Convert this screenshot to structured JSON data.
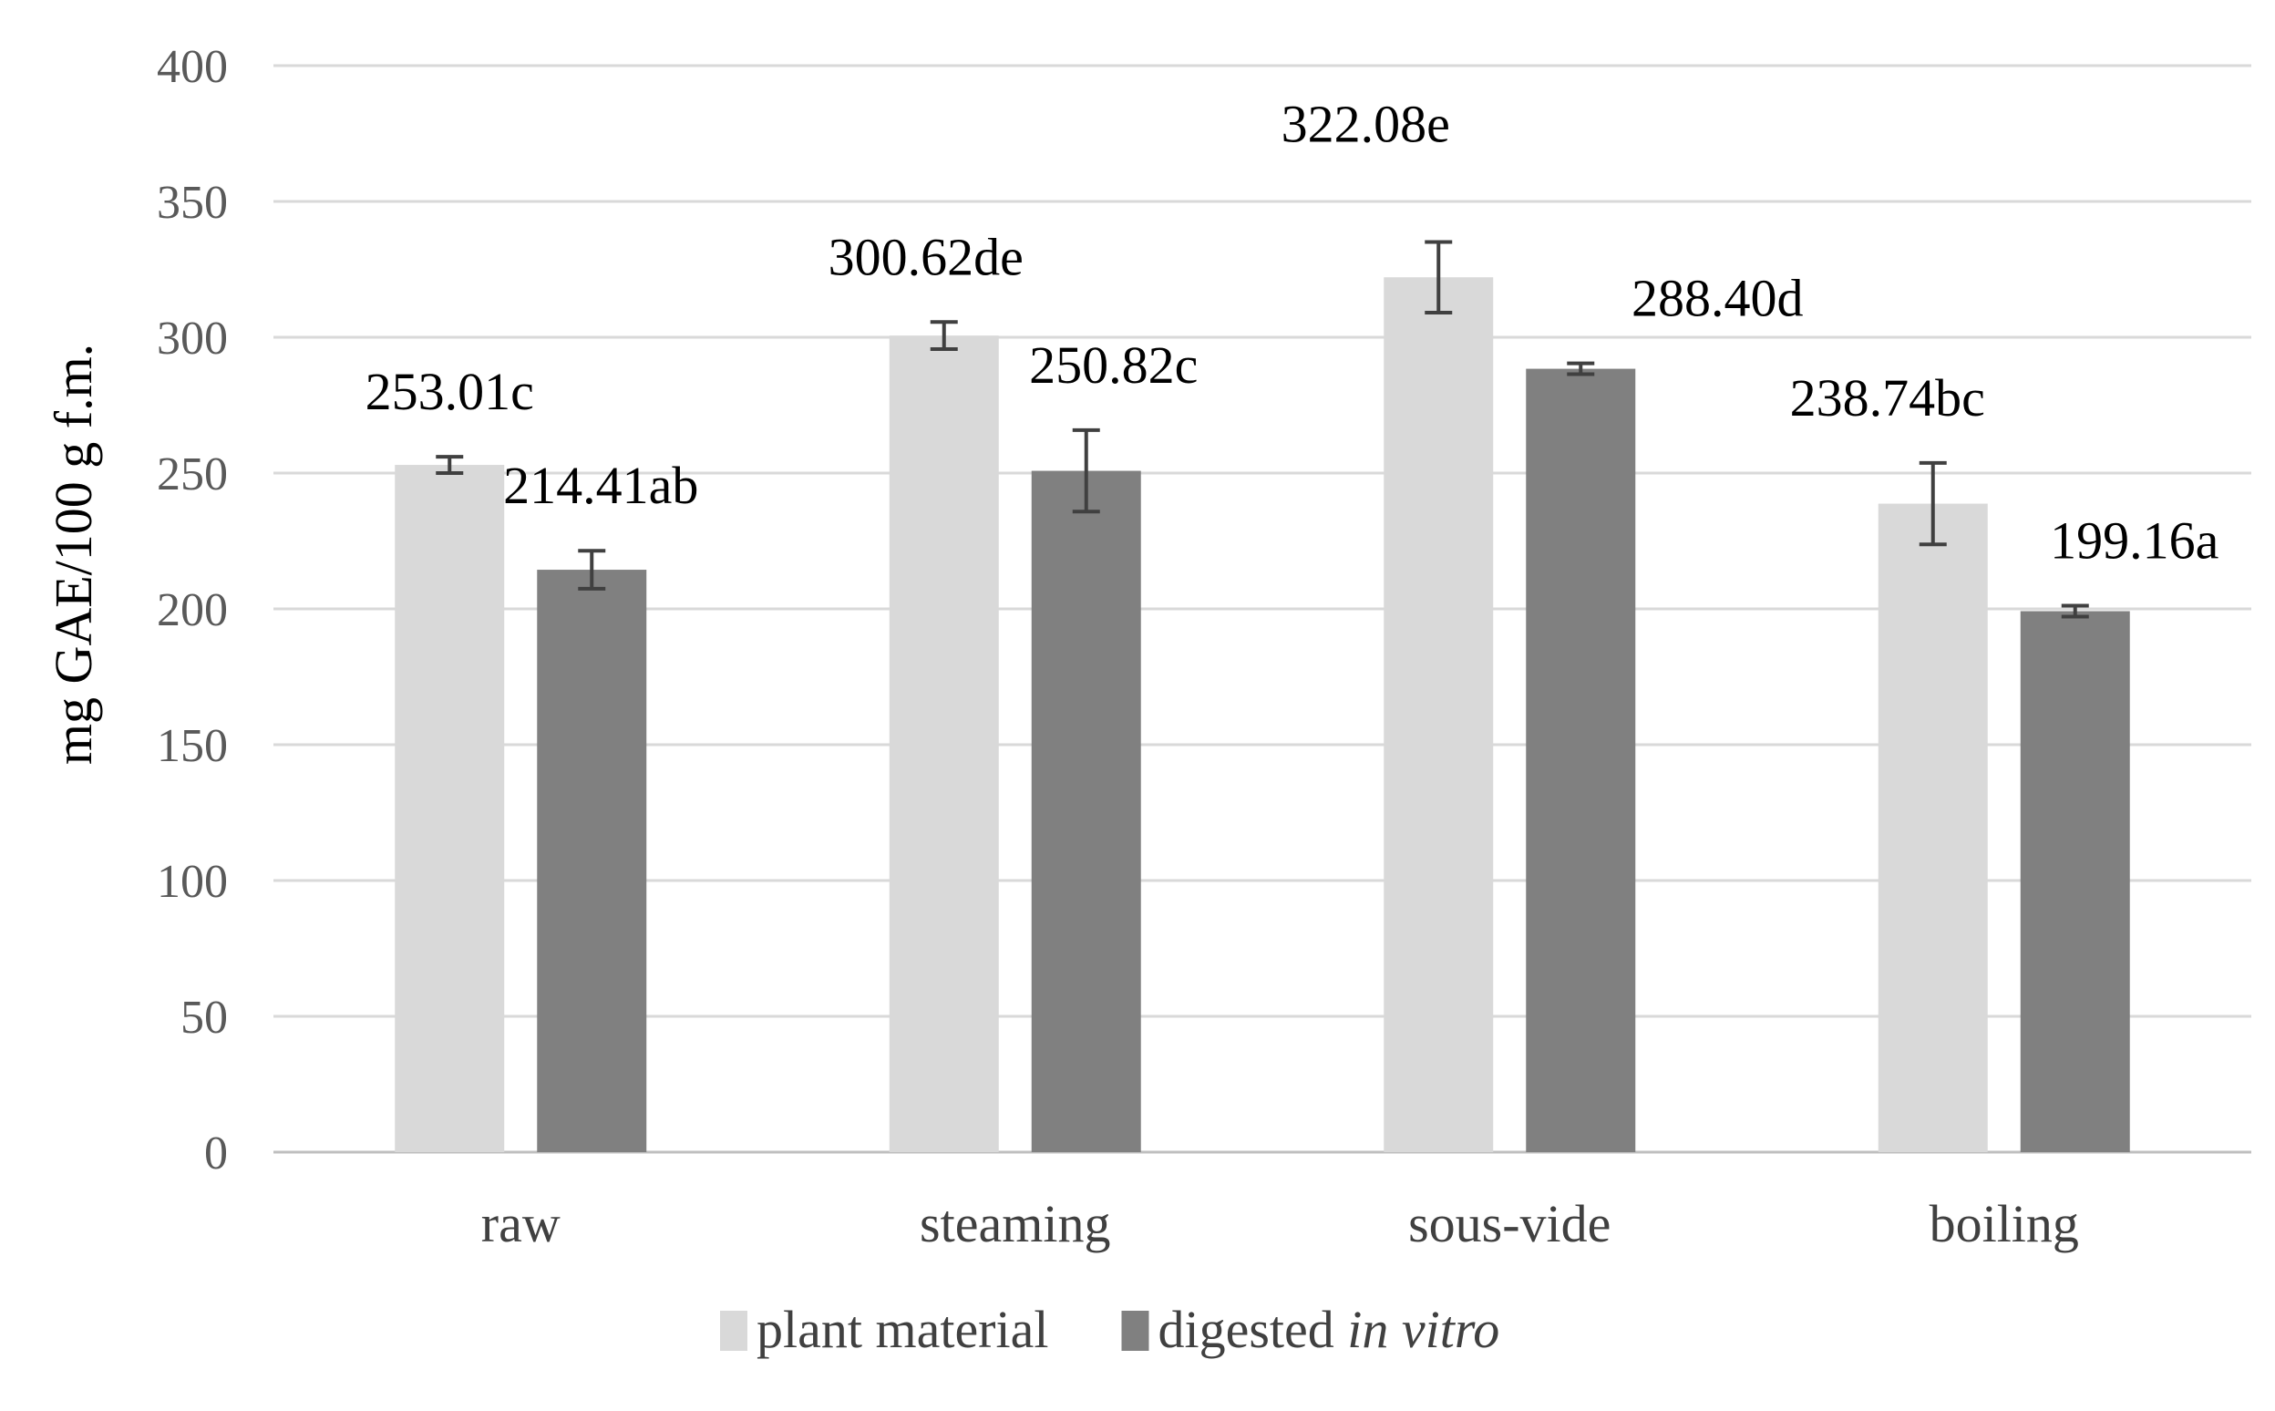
{
  "chart_data": {
    "type": "bar",
    "ylabel": "mg GAE/100 g f.m.",
    "ylim": [
      0,
      400
    ],
    "ytick_step": 50,
    "grid": true,
    "legend_position": "bottom",
    "categories": [
      "raw",
      "steaming",
      "sous-vide",
      "boiling"
    ],
    "series": [
      {
        "name": "plant material",
        "color": "#d9d9d9",
        "values": [
          253.01,
          300.62,
          322.08,
          238.74
        ],
        "errors": [
          3,
          5,
          13,
          15
        ],
        "labels": [
          "253.01c",
          "300.62de",
          "322.08e",
          "238.74bc"
        ]
      },
      {
        "name": "digested in vitro",
        "name_parts": [
          "digested ",
          "in vitro"
        ],
        "color": "#808080",
        "values": [
          214.41,
          250.82,
          288.4,
          199.16
        ],
        "errors": [
          7,
          15,
          2,
          2
        ],
        "labels": [
          "214.41ab",
          "250.82c",
          "288.40d",
          "199.16a"
        ]
      }
    ]
  }
}
